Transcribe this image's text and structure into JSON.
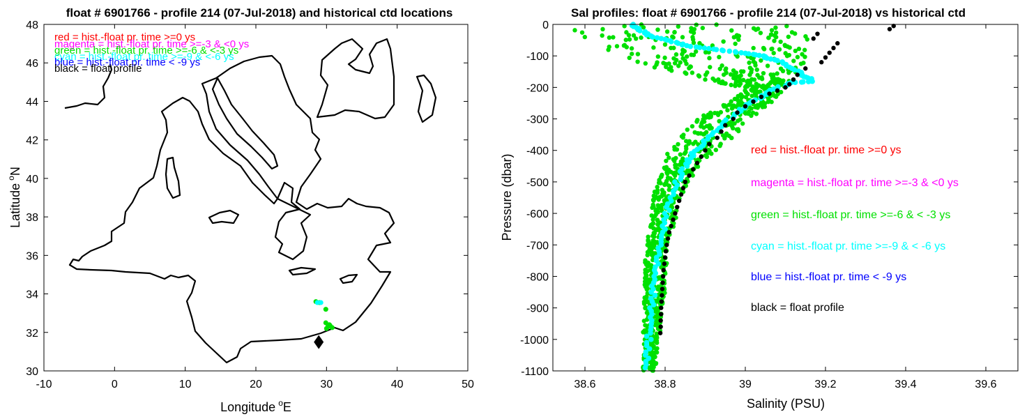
{
  "chart_data": [
    {
      "type": "scatter",
      "title": "float # 6901766 - profile 214 (07-Jul-2018) and historical ctd locations",
      "xlabel": "Longitude",
      "xlabel_sup": "o",
      "xlabel_tail": "E",
      "ylabel": "Latitude",
      "ylabel_sup": "o",
      "ylabel_tail": "N",
      "xlim": [
        -10,
        50
      ],
      "ylim": [
        30,
        48
      ],
      "xticks": [
        -10,
        0,
        10,
        20,
        30,
        40,
        50
      ],
      "yticks": [
        30,
        32,
        34,
        36,
        38,
        40,
        42,
        44,
        46,
        48
      ],
      "legend_position": "top-left",
      "legend": [
        {
          "text": "red = hist.-float pr. time >=0 ys",
          "color": "#ff0000"
        },
        {
          "text": "magenta = hist.-float pr. time >=-3 & <0 ys",
          "color": "#ff00ff"
        },
        {
          "text": "green = hist.-float pr. time >=-6 & <-3 ys",
          "color": "#00e000"
        },
        {
          "text": "cyan = hist.-float pr. time >=-9 & <-6 ys",
          "color": "#00ffff"
        },
        {
          "text": "blue = hist.-float pr. time < -9 ys",
          "color": "#0000ff"
        },
        {
          "text": "black = float profile",
          "color": "#000000"
        }
      ],
      "series": [
        {
          "name": "green",
          "color": "#00e000",
          "points": [
            [
              28.5,
              33.6
            ],
            [
              29.0,
              33.55
            ],
            [
              29.9,
              33.2
            ],
            [
              29.9,
              32.5
            ],
            [
              30.2,
              32.3
            ],
            [
              30.5,
              32.35
            ],
            [
              30.8,
              32.25
            ],
            [
              30.0,
              32.2
            ],
            [
              30.4,
              32.4
            ]
          ]
        },
        {
          "name": "cyan",
          "color": "#00ffff",
          "points": [
            [
              28.7,
              33.55
            ],
            [
              29.2,
              33.55
            ]
          ]
        },
        {
          "name": "black",
          "color": "#000000",
          "marker": "diamond",
          "points": [
            [
              28.9,
              31.5
            ]
          ]
        }
      ]
    },
    {
      "type": "scatter",
      "title": "Sal profiles: float # 6901766 - profile 214 (07-Jul-2018) vs historical ctd",
      "xlabel": "Salinity (PSU)",
      "ylabel": "Pressure (dbar)",
      "xlim": [
        38.52,
        39.68
      ],
      "ylim": [
        -1100,
        0
      ],
      "xticks": [
        38.6,
        38.8,
        39,
        39.2,
        39.4,
        39.6
      ],
      "xticklabels": [
        "38.6",
        "38.8",
        "39",
        "39.2",
        "39.4",
        "39.6"
      ],
      "yticks": [
        0,
        -100,
        -200,
        -300,
        -400,
        -500,
        -600,
        -700,
        -800,
        -900,
        -1000,
        -1100
      ],
      "legend_position": "center-right",
      "legend": [
        {
          "text": "red = hist.-float pr. time >=0 ys",
          "color": "#ff0000"
        },
        {
          "text": "magenta = hist.-float pr. time >=-3 & <0 ys",
          "color": "#ff00ff"
        },
        {
          "text": "green = hist.-float pr. time >=-6 & < -3 ys",
          "color": "#00e000"
        },
        {
          "text": "cyan = hist.-float pr. time >=-9 & < -6 ys",
          "color": "#00ffff"
        },
        {
          "text": "blue = hist.-float pr. time < -9 ys",
          "color": "#0000ff"
        },
        {
          "text": "black = float profile",
          "color": "#000000"
        }
      ],
      "green_envelope": {
        "color": "#00e000",
        "pressure": [
          0,
          -60,
          -120,
          -170,
          -200,
          -230,
          -260,
          -300,
          -350,
          -400,
          -450,
          -500,
          -550,
          -600,
          -650,
          -700,
          -750,
          -800,
          -850,
          -900,
          -950,
          -1000,
          -1050,
          -1100
        ],
        "sal_min": [
          38.55,
          38.62,
          38.72,
          38.88,
          38.99,
          38.98,
          38.94,
          38.88,
          38.84,
          38.81,
          38.79,
          38.78,
          38.77,
          38.765,
          38.76,
          38.755,
          38.75,
          38.75,
          38.748,
          38.746,
          38.745,
          38.744,
          38.744,
          38.744
        ],
        "sal_max": [
          39.14,
          39.16,
          39.15,
          39.12,
          39.1,
          39.08,
          39.06,
          39.02,
          38.98,
          38.93,
          38.89,
          38.86,
          38.84,
          38.83,
          38.82,
          38.81,
          38.805,
          38.8,
          38.8,
          38.795,
          38.79,
          38.785,
          38.78,
          38.775
        ]
      },
      "cyan_profile": {
        "color": "#00ffff",
        "points": [
          [
            38.72,
            0
          ],
          [
            38.74,
            -20
          ],
          [
            38.77,
            -40
          ],
          [
            38.82,
            -55
          ],
          [
            38.86,
            -70
          ],
          [
            38.93,
            -80
          ],
          [
            38.99,
            -90
          ],
          [
            39.04,
            -100
          ],
          [
            39.08,
            -115
          ],
          [
            39.12,
            -140
          ],
          [
            39.15,
            -165
          ],
          [
            39.17,
            -180
          ],
          [
            39.12,
            -185
          ],
          [
            39.07,
            -205
          ],
          [
            39.04,
            -230
          ],
          [
            39.0,
            -260
          ],
          [
            38.97,
            -290
          ],
          [
            38.93,
            -330
          ],
          [
            38.9,
            -370
          ],
          [
            38.87,
            -410
          ],
          [
            38.85,
            -450
          ],
          [
            38.83,
            -500
          ],
          [
            38.81,
            -560
          ],
          [
            38.8,
            -620
          ],
          [
            38.79,
            -680
          ],
          [
            38.78,
            -740
          ],
          [
            38.775,
            -800
          ],
          [
            38.77,
            -860
          ],
          [
            38.765,
            -920
          ],
          [
            38.76,
            -980
          ],
          [
            38.757,
            -1040
          ],
          [
            38.755,
            -1100
          ]
        ]
      },
      "float_profile": {
        "color": "#000000",
        "points": [
          [
            39.37,
            -5
          ],
          [
            39.36,
            -15
          ],
          [
            39.18,
            -30
          ],
          [
            39.17,
            -45
          ],
          [
            39.23,
            -60
          ],
          [
            39.22,
            -75
          ],
          [
            39.21,
            -90
          ],
          [
            39.2,
            -105
          ],
          [
            39.19,
            -120
          ],
          [
            39.15,
            -140
          ],
          [
            39.13,
            -160
          ],
          [
            39.12,
            -175
          ],
          [
            39.11,
            -190
          ],
          [
            39.1,
            -200
          ],
          [
            39.08,
            -210
          ],
          [
            39.06,
            -220
          ],
          [
            39.04,
            -230
          ],
          [
            39.02,
            -245
          ],
          [
            39.0,
            -260
          ],
          [
            38.98,
            -280
          ],
          [
            38.97,
            -300
          ],
          [
            38.95,
            -320
          ],
          [
            38.94,
            -340
          ],
          [
            38.93,
            -360
          ],
          [
            38.91,
            -380
          ],
          [
            38.9,
            -400
          ],
          [
            38.89,
            -420
          ],
          [
            38.88,
            -440
          ],
          [
            38.87,
            -460
          ],
          [
            38.86,
            -480
          ],
          [
            38.85,
            -500
          ],
          [
            38.845,
            -520
          ],
          [
            38.84,
            -540
          ],
          [
            38.835,
            -560
          ],
          [
            38.83,
            -580
          ],
          [
            38.825,
            -600
          ],
          [
            38.82,
            -620
          ],
          [
            38.815,
            -640
          ],
          [
            38.81,
            -660
          ],
          [
            38.807,
            -680
          ],
          [
            38.804,
            -700
          ],
          [
            38.802,
            -720
          ],
          [
            38.8,
            -740
          ],
          [
            38.798,
            -760
          ],
          [
            38.796,
            -780
          ],
          [
            38.795,
            -800
          ],
          [
            38.794,
            -820
          ],
          [
            38.793,
            -840
          ],
          [
            38.792,
            -860
          ],
          [
            38.791,
            -880
          ],
          [
            38.79,
            -900
          ],
          [
            38.79,
            -920
          ],
          [
            38.789,
            -940
          ],
          [
            38.789,
            -960
          ],
          [
            38.788,
            -980
          ]
        ]
      }
    }
  ]
}
